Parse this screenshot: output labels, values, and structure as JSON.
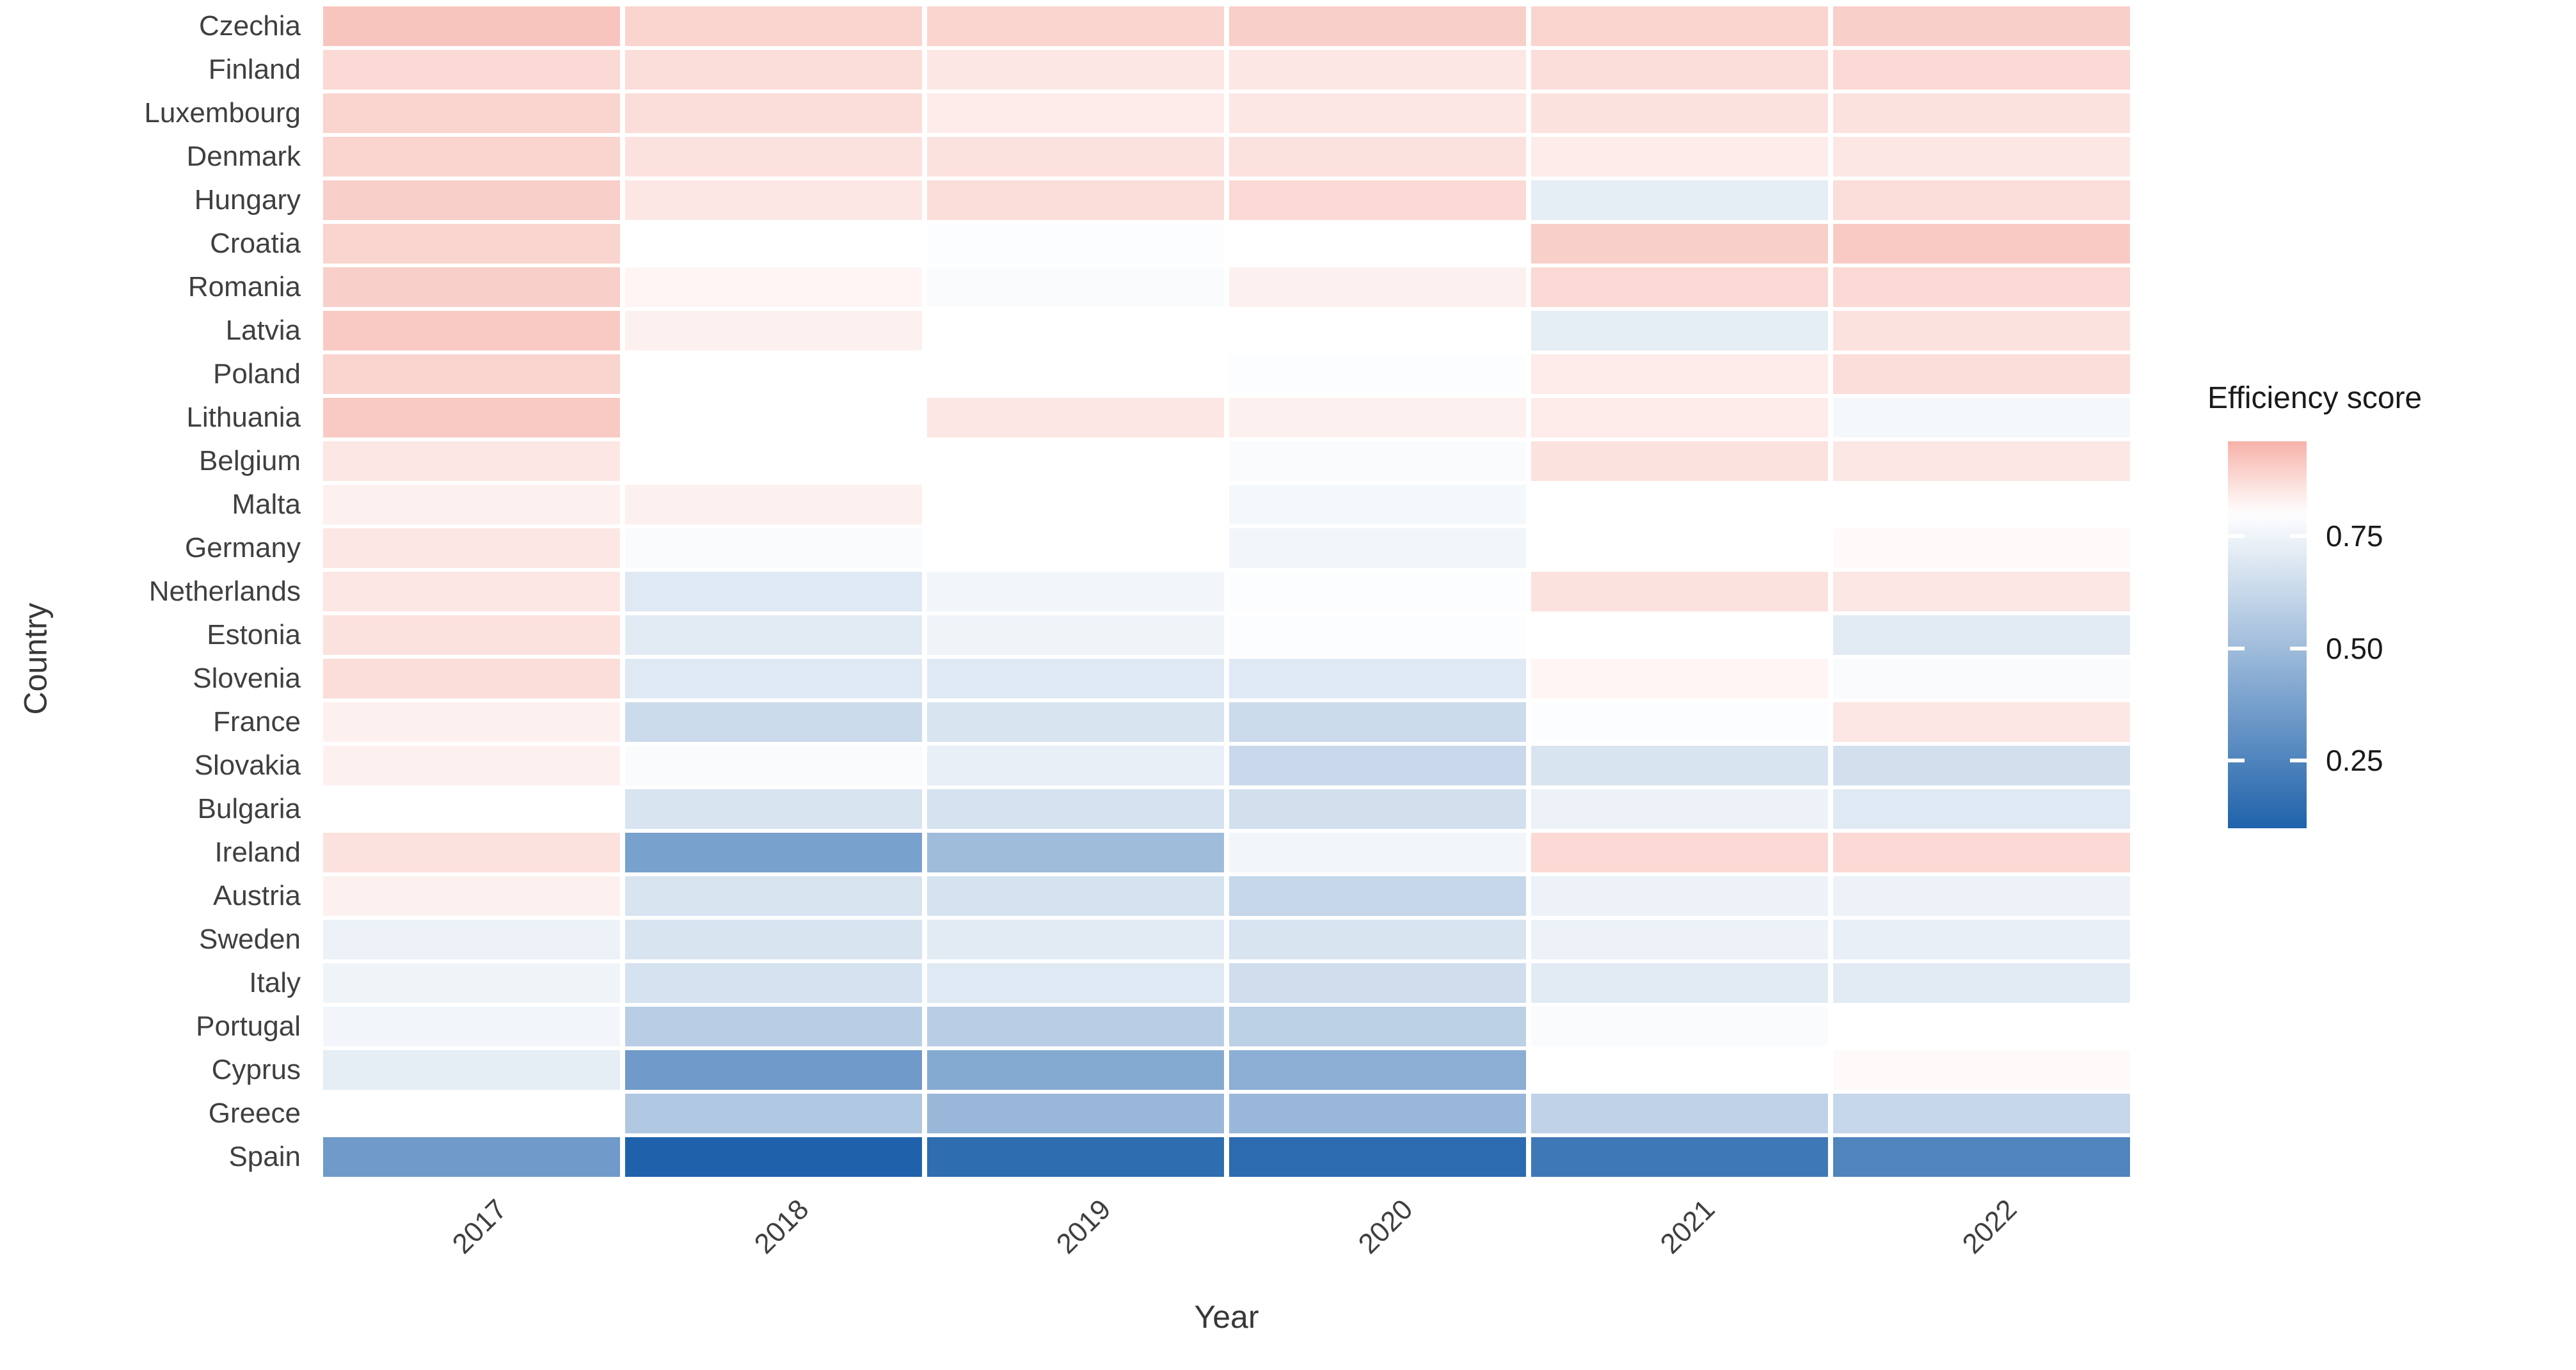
{
  "figure": {
    "background": "#ffffff",
    "x_axis_title": "Year",
    "y_axis_title": "Country",
    "legend_title": "Efficiency score"
  },
  "chart_data": {
    "type": "heatmap",
    "title": "",
    "xlabel": "Year",
    "ylabel": "Country",
    "legend_title": "Efficiency score",
    "x": [
      "2017",
      "2018",
      "2019",
      "2020",
      "2021",
      "2022"
    ],
    "categories": [
      "Czechia",
      "Finland",
      "Luxembourg",
      "Denmark",
      "Hungary",
      "Croatia",
      "Romania",
      "Latvia",
      "Poland",
      "Lithuania",
      "Belgium",
      "Malta",
      "Germany",
      "Netherlands",
      "Estonia",
      "Slovenia",
      "France",
      "Slovakia",
      "Bulgaria",
      "Ireland",
      "Austria",
      "Sweden",
      "Italy",
      "Portugal",
      "Cyprus",
      "Greece",
      "Spain"
    ],
    "series": [
      {
        "name": "Czechia",
        "values": [
          0.92,
          0.89,
          0.89,
          0.9,
          0.89,
          0.9
        ]
      },
      {
        "name": "Finland",
        "values": [
          0.88,
          0.87,
          0.85,
          0.85,
          0.87,
          0.88
        ]
      },
      {
        "name": "Luxembourg",
        "values": [
          0.89,
          0.87,
          0.84,
          0.85,
          0.86,
          0.86
        ]
      },
      {
        "name": "Denmark",
        "values": [
          0.89,
          0.86,
          0.86,
          0.86,
          0.84,
          0.85
        ]
      },
      {
        "name": "Hungary",
        "values": [
          0.9,
          0.85,
          0.87,
          0.88,
          0.72,
          0.87
        ]
      },
      {
        "name": "Croatia",
        "values": [
          0.89,
          0.8,
          0.79,
          0.8,
          0.9,
          0.91
        ]
      },
      {
        "name": "Romania",
        "values": [
          0.9,
          0.82,
          0.78,
          0.83,
          0.88,
          0.88
        ]
      },
      {
        "name": "Latvia",
        "values": [
          0.91,
          0.83,
          0.8,
          0.8,
          0.72,
          0.86
        ]
      },
      {
        "name": "Poland",
        "values": [
          0.89,
          0.8,
          0.8,
          0.79,
          0.84,
          0.87
        ]
      },
      {
        "name": "Lithuania",
        "values": [
          0.91,
          0.8,
          0.85,
          0.83,
          0.84,
          0.77
        ]
      },
      {
        "name": "Belgium",
        "values": [
          0.85,
          0.8,
          0.8,
          0.78,
          0.86,
          0.85
        ]
      },
      {
        "name": "Malta",
        "values": [
          0.83,
          0.83,
          0.8,
          0.77,
          0.8,
          0.8
        ]
      },
      {
        "name": "Germany",
        "values": [
          0.85,
          0.78,
          0.8,
          0.76,
          0.8,
          0.81
        ]
      },
      {
        "name": "Netherlands",
        "values": [
          0.85,
          0.7,
          0.76,
          0.79,
          0.86,
          0.85
        ]
      },
      {
        "name": "Estonia",
        "values": [
          0.86,
          0.71,
          0.75,
          0.79,
          0.8,
          0.71
        ]
      },
      {
        "name": "Slovenia",
        "values": [
          0.87,
          0.7,
          0.7,
          0.7,
          0.82,
          0.78
        ]
      },
      {
        "name": "France",
        "values": [
          0.83,
          0.64,
          0.68,
          0.64,
          0.79,
          0.85
        ]
      },
      {
        "name": "Slovakia",
        "values": [
          0.83,
          0.78,
          0.73,
          0.63,
          0.68,
          0.66
        ]
      },
      {
        "name": "Bulgaria",
        "values": [
          0.8,
          0.68,
          0.67,
          0.66,
          0.74,
          0.7
        ]
      },
      {
        "name": "Ireland",
        "values": [
          0.86,
          0.38,
          0.5,
          0.76,
          0.88,
          0.88
        ]
      },
      {
        "name": "Austria",
        "values": [
          0.83,
          0.68,
          0.67,
          0.62,
          0.74,
          0.74
        ]
      },
      {
        "name": "Sweden",
        "values": [
          0.74,
          0.68,
          0.71,
          0.68,
          0.74,
          0.73
        ]
      },
      {
        "name": "Italy",
        "values": [
          0.75,
          0.67,
          0.7,
          0.65,
          0.71,
          0.71
        ]
      },
      {
        "name": "Portugal",
        "values": [
          0.76,
          0.58,
          0.58,
          0.59,
          0.78,
          0.8
        ]
      },
      {
        "name": "Cyprus",
        "values": [
          0.72,
          0.35,
          0.42,
          0.44,
          0.8,
          0.81
        ]
      },
      {
        "name": "Greece",
        "values": [
          0.8,
          0.55,
          0.48,
          0.48,
          0.6,
          0.62
        ]
      },
      {
        "name": "Spain",
        "values": [
          0.35,
          0.1,
          0.15,
          0.14,
          0.2,
          0.25
        ]
      }
    ],
    "color_scale": {
      "type": "diverging",
      "low_color": "#1f62ab",
      "mid_color": "#ffffff",
      "high_color": "#f6b2a8",
      "domain": [
        0.1,
        0.96
      ],
      "midpoint": 0.8
    },
    "legend": {
      "position": "right",
      "title": "Efficiency score",
      "tick_values": [
        0.75,
        0.5,
        0.25
      ],
      "tick_labels": [
        "0.75",
        "0.50",
        "0.25"
      ]
    },
    "layout_hints": {
      "grid": "white gaps between tiles",
      "x_tick_rotation_deg": 45,
      "axis_text_color": "#3f3f3f"
    }
  }
}
